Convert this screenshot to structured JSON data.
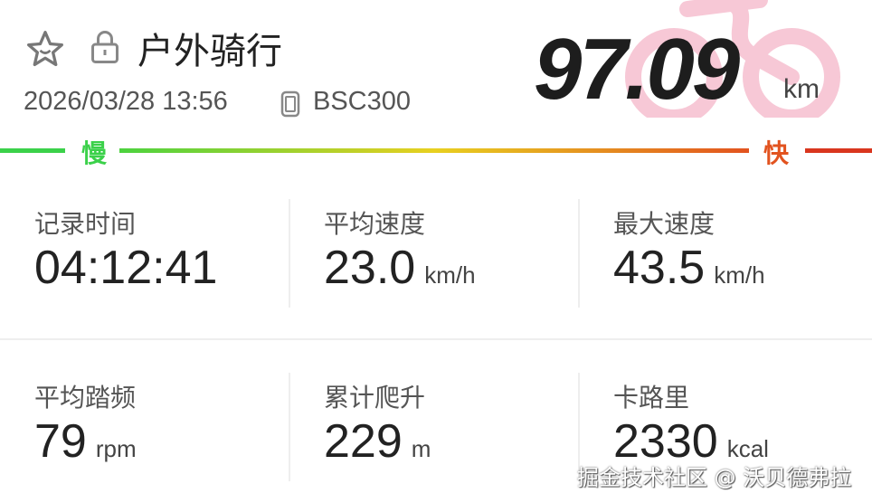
{
  "header": {
    "title": "户外骑行",
    "datetime": "2026/03/28 13:56",
    "device": "BSC300",
    "distance": "97.09",
    "distance_unit": "km"
  },
  "speed_scale": {
    "slow": "慢",
    "fast": "快",
    "colors": [
      "#3bd14a",
      "#e8d020",
      "#e2531f"
    ]
  },
  "stats": [
    {
      "label": "记录时间",
      "value": "04:12:41",
      "unit": ""
    },
    {
      "label": "平均速度",
      "value": "23.0",
      "unit": "km/h"
    },
    {
      "label": "最大速度",
      "value": "43.5",
      "unit": "km/h"
    },
    {
      "label": "平均踏频",
      "value": "79",
      "unit": "rpm"
    },
    {
      "label": "累计爬升",
      "value": "229",
      "unit": "m"
    },
    {
      "label": "卡路里",
      "value": "2330",
      "unit": "kcal"
    }
  ],
  "watermark": "掘金技术社区 @ 沃贝德弗拉",
  "icons": [
    "star-icon",
    "lock-icon",
    "device-icon",
    "bicycle-icon"
  ]
}
